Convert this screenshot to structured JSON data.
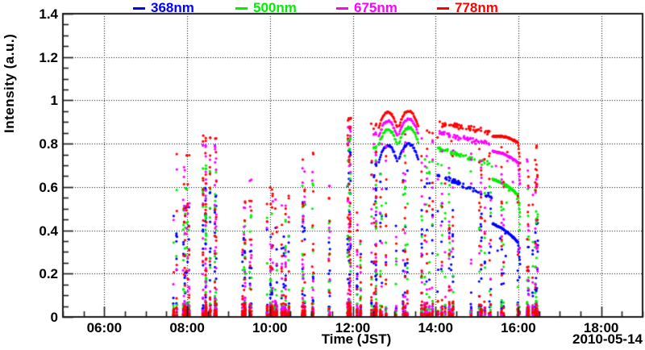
{
  "legend": {
    "items": [
      {
        "label": "368nm",
        "color": "#0000ff"
      },
      {
        "label": "500nm",
        "color": "#00ee00"
      },
      {
        "label": "675nm",
        "color": "#ff00ff"
      },
      {
        "label": "778nm",
        "color": "#ff0000"
      }
    ]
  },
  "chart_data": {
    "type": "scatter",
    "title": "",
    "xlabel": "Time (JST)",
    "ylabel": "Intensity (a.u.)",
    "date_label": "2010-05-14",
    "xlim_hours": [
      5,
      19
    ],
    "ylim": [
      0,
      1.4
    ],
    "x_ticks": [
      {
        "hour": 6,
        "label": "06:00"
      },
      {
        "hour": 8,
        "label": "08:00"
      },
      {
        "hour": 10,
        "label": "10:00"
      },
      {
        "hour": 12,
        "label": "12:00"
      },
      {
        "hour": 14,
        "label": "14:00"
      },
      {
        "hour": 16,
        "label": "16:00"
      },
      {
        "hour": 18,
        "label": "18:00"
      }
    ],
    "y_ticks": [
      {
        "value": 0,
        "label": "0"
      },
      {
        "value": 0.2,
        "label": "0.2"
      },
      {
        "value": 0.4,
        "label": "0.4"
      },
      {
        "value": 0.6,
        "label": "0.6"
      },
      {
        "value": 0.8,
        "label": "0.8"
      },
      {
        "value": 1,
        "label": "1"
      },
      {
        "value": 1.2,
        "label": "1.2"
      },
      {
        "value": 1.4,
        "label": "1.4"
      }
    ],
    "x_minor_step_hours": 0.5,
    "y_minor_step": 0.05,
    "grid": {
      "style": "dotted",
      "color": "#000000",
      "at_major_ticks": true
    },
    "axis_color": "#1a1a1a",
    "marker": {
      "shape": "circle",
      "radius_px": 1.6
    },
    "series": [
      {
        "key": "b",
        "name": "368nm",
        "color": "#0000ff"
      },
      {
        "key": "g",
        "name": "500nm",
        "color": "#00ee00"
      },
      {
        "key": "m",
        "name": "675nm",
        "color": "#ff00ff"
      },
      {
        "key": "r",
        "name": "778nm",
        "color": "#ff0000"
      }
    ],
    "seed": 20100514,
    "clusters": [
      {
        "type": "burst",
        "t0": 7.63,
        "t1": 8.06,
        "cols": 10,
        "top": {
          "b": 0.52,
          "g": 0.6,
          "m": 0.7,
          "r": 0.76
        },
        "n_top": 3,
        "n_fill": 26,
        "n_bot": 60
      },
      {
        "type": "burst",
        "t0": 8.28,
        "t1": 8.47,
        "cols": 3,
        "top": {
          "b": 0.6,
          "g": 0.7,
          "m": 0.8,
          "r": 0.84
        },
        "n_top": 4,
        "n_fill": 22,
        "n_bot": 30
      },
      {
        "type": "burst",
        "t0": 8.55,
        "t1": 8.74,
        "cols": 3,
        "top": {
          "b": 0.58,
          "g": 0.68,
          "m": 0.8,
          "r": 0.84
        },
        "n_top": 4,
        "n_fill": 20,
        "n_bot": 28
      },
      {
        "type": "burst",
        "t0": 9.25,
        "t1": 9.42,
        "cols": 4,
        "top": {
          "b": 0.38,
          "g": 0.45,
          "m": 0.52,
          "r": 0.55
        },
        "n_top": 2,
        "n_fill": 10,
        "n_bot": 36
      },
      {
        "type": "burst",
        "t0": 9.45,
        "t1": 9.55,
        "cols": 2,
        "top": {
          "b": 0.32,
          "g": 0.48,
          "m": 0.65,
          "r": 0.55
        },
        "n_top": 2,
        "n_fill": 6,
        "n_bot": 8
      },
      {
        "type": "burst",
        "t0": 9.88,
        "t1": 10.18,
        "cols": 6,
        "top": {
          "b": 0.42,
          "g": 0.48,
          "m": 0.55,
          "r": 0.62
        },
        "n_top": 2,
        "n_fill": 14,
        "n_bot": 50
      },
      {
        "type": "burst",
        "t0": 10.28,
        "t1": 10.47,
        "cols": 4,
        "top": {
          "b": 0.4,
          "g": 0.45,
          "m": 0.52,
          "r": 0.56
        },
        "n_top": 2,
        "n_fill": 12,
        "n_bot": 30
      },
      {
        "type": "burst",
        "t0": 10.78,
        "t1": 11.1,
        "cols": 5,
        "top": {
          "b": 0.55,
          "g": 0.62,
          "m": 0.7,
          "r": 0.76
        },
        "n_top": 3,
        "n_fill": 16,
        "n_bot": 30
      },
      {
        "type": "burst",
        "t0": 11.33,
        "t1": 11.47,
        "cols": 2,
        "top": {
          "b": 0.35,
          "g": 0.46,
          "m": 0.62,
          "r": 0.56
        },
        "n_top": 2,
        "n_fill": 5,
        "n_bot": 4
      },
      {
        "type": "burst",
        "t0": 11.78,
        "t1": 12.0,
        "cols": 4,
        "top": {
          "b": 0.78,
          "g": 0.84,
          "m": 0.89,
          "r": 0.93
        },
        "n_top": 6,
        "n_fill": 30,
        "n_bot": 40
      },
      {
        "type": "burst",
        "t0": 12.1,
        "t1": 12.22,
        "cols": 2,
        "top": {
          "b": 0.3,
          "g": 0.35,
          "m": 0.45,
          "r": 0.5
        },
        "n_top": 1,
        "n_fill": 8,
        "n_bot": 15
      },
      {
        "type": "burst",
        "t0": 12.35,
        "t1": 12.62,
        "cols": 5,
        "top": {
          "b": 0.72,
          "g": 0.8,
          "m": 0.86,
          "r": 0.9
        },
        "n_top": 5,
        "n_fill": 20,
        "n_bot": 25
      },
      {
        "type": "arc",
        "t0": 12.63,
        "t1": 13.07,
        "cols": 4,
        "top": {
          "b": 0.79,
          "g": 0.865,
          "m": 0.905,
          "r": 0.945
        },
        "arc_drop": 0.07,
        "n_trace": 26,
        "n_fill": 12,
        "n_bot": 12
      },
      {
        "type": "arc",
        "t0": 13.12,
        "t1": 13.58,
        "cols": 4,
        "top": {
          "b": 0.8,
          "g": 0.875,
          "m": 0.915,
          "r": 0.95
        },
        "arc_drop": 0.07,
        "n_trace": 28,
        "n_fill": 12,
        "n_bot": 12
      },
      {
        "type": "burst",
        "t0": 13.62,
        "t1": 14.0,
        "cols": 6,
        "top": {
          "b": 0.62,
          "g": 0.74,
          "m": 0.83,
          "r": 0.87
        },
        "n_top": 3,
        "n_fill": 18,
        "n_bot": 30
      },
      {
        "type": "band",
        "t0": 14.03,
        "t1": 15.36,
        "cols": 16,
        "top": {
          "b": 0.66,
          "g": 0.78,
          "m": 0.85,
          "r": 0.895
        },
        "top_end": {
          "b": 0.55,
          "g": 0.7,
          "m": 0.8,
          "r": 0.855
        },
        "n_band": 55,
        "n_fill": 40,
        "n_bot": 45
      },
      {
        "type": "trace",
        "t0": 15.38,
        "t1": 16.04,
        "cols": 5,
        "top": {
          "b": 0.43,
          "g": 0.635,
          "m": 0.765,
          "r": 0.835
        },
        "top_end": {
          "b": 0.335,
          "g": 0.555,
          "m": 0.705,
          "r": 0.8
        },
        "n_trace": 85,
        "n_fill": 12,
        "n_bot": 12
      },
      {
        "type": "burst",
        "t0": 16.06,
        "t1": 16.52,
        "cols": 8,
        "top": {
          "b": 0.45,
          "g": 0.6,
          "m": 0.74,
          "r": 0.8
        },
        "n_top": 2,
        "n_fill": 25,
        "n_bot": 45
      }
    ]
  }
}
